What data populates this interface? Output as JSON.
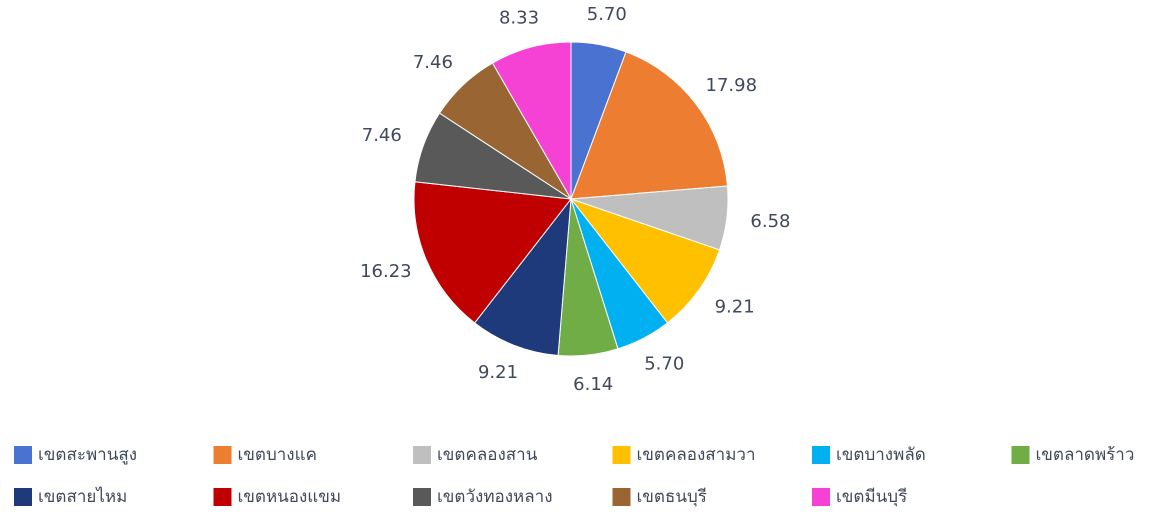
{
  "chart_data": {
    "type": "pie",
    "categories": [
      "เขตสะพานสูง",
      "เขตบางแค",
      "เขตคลองสาน",
      "เขตคลองสามวา",
      "เขตบางพลัด",
      "เขตลาดพร้าว",
      "เขตสายไหม",
      "เขตหนองแขม",
      "เขตวังทองหลาง",
      "เขตธนบุรี",
      "เขตมีนบุรี"
    ],
    "values": [
      5.7,
      17.98,
      6.58,
      9.21,
      5.7,
      6.14,
      9.21,
      16.23,
      7.46,
      7.46,
      8.33
    ],
    "value_labels": [
      "5.70",
      "17.98",
      "6.58",
      "9.21",
      "5.70",
      "6.14",
      "9.21",
      "16.23",
      "7.46",
      "7.46",
      "8.33"
    ],
    "colors": [
      "#4a72d0",
      "#ed7d31",
      "#bfbfbf",
      "#ffc000",
      "#00b0f0",
      "#70ad47",
      "#1f3a7a",
      "#c00000",
      "#595959",
      "#996633",
      "#f542d4"
    ],
    "legend": "bottom"
  }
}
